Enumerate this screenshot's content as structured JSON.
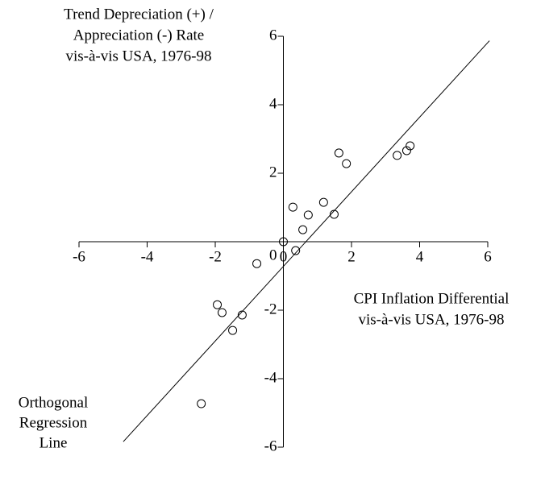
{
  "chart_data": {
    "type": "scatter",
    "y_label": [
      "Trend Depreciation (+) /",
      "Appreciation (-) Rate",
      "vis-à-vis USA, 1976-98"
    ],
    "x_label": [
      "CPI Inflation Differential",
      "vis-à-vis USA, 1976-98"
    ],
    "xlim": [
      -6,
      6
    ],
    "ylim": [
      -6,
      6
    ],
    "xticks": [
      -6,
      -4,
      -2,
      0,
      2,
      4,
      6
    ],
    "yticks": [
      -6,
      -4,
      -2,
      0,
      2,
      4,
      6
    ],
    "x": [
      0,
      0.28,
      0.36,
      0.73,
      0.57,
      1.18,
      1.49,
      1.63,
      1.85,
      3.34,
      3.62,
      3.72,
      -0.78,
      -1.94,
      -1.8,
      -1.21,
      -1.49,
      -2.41
    ],
    "values": [
      0,
      1.01,
      -0.26,
      0.78,
      0.35,
      1.15,
      0.8,
      2.59,
      2.28,
      2.52,
      2.66,
      2.8,
      -0.64,
      -1.84,
      -2.07,
      -2.14,
      -2.59,
      -4.73
    ],
    "color": "#000000",
    "regression_line": {
      "name": [
        "Orthogonal",
        "Regression",
        "Line"
      ],
      "x": [
        -4.7,
        6.05
      ],
      "values": [
        -5.84,
        5.87
      ],
      "color": "#000000"
    }
  }
}
